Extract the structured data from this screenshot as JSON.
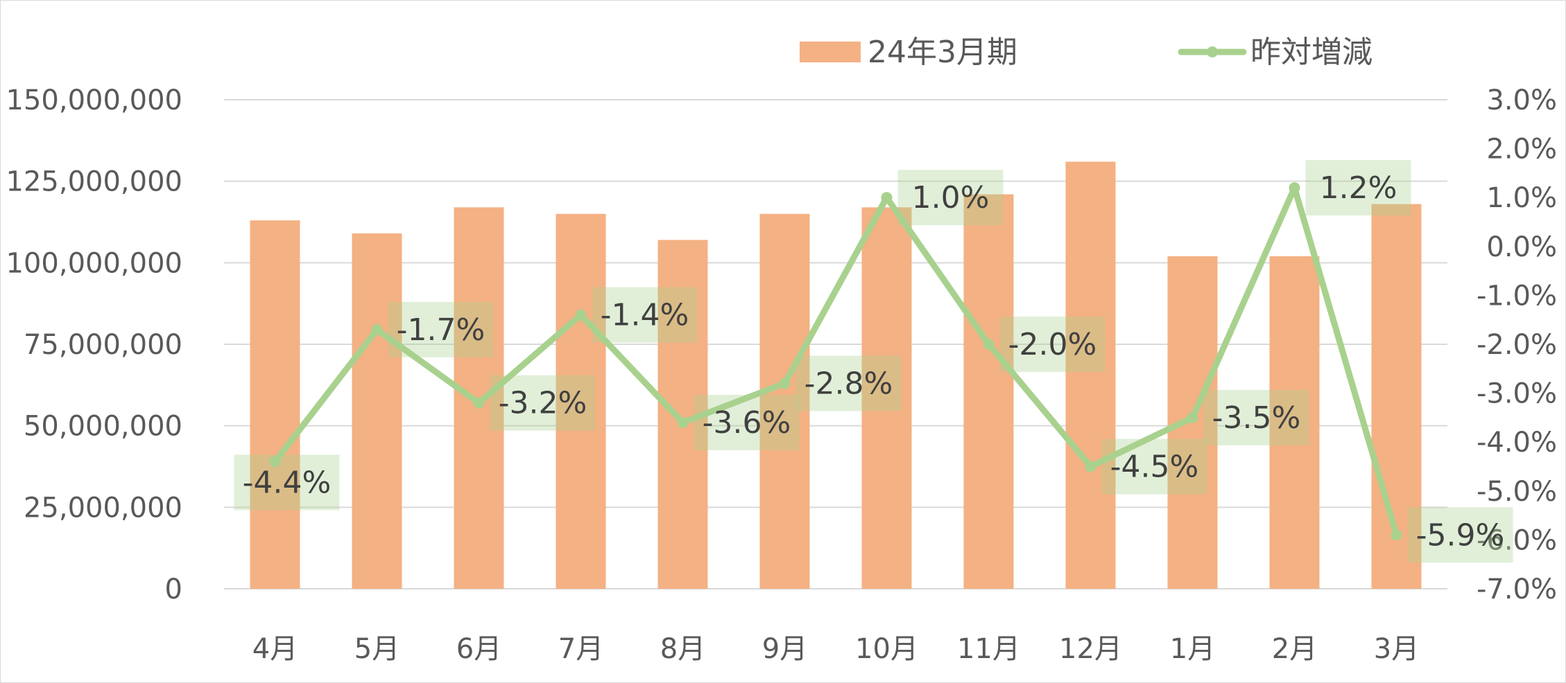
{
  "chart_data": {
    "type": "bar",
    "categories": [
      "4月",
      "5月",
      "6月",
      "7月",
      "8月",
      "9月",
      "10月",
      "11月",
      "12月",
      "1月",
      "2月",
      "3月"
    ],
    "series": [
      {
        "name": "24年3月期",
        "type": "bar",
        "axis": "left",
        "color": "#F4B183",
        "values": [
          113000000,
          109000000,
          117000000,
          115000000,
          107000000,
          115000000,
          117000000,
          121000000,
          131000000,
          102000000,
          102000000,
          118000000
        ]
      },
      {
        "name": "昨対増減",
        "type": "line",
        "axis": "right",
        "color": "#A9D18E",
        "values": [
          -4.4,
          -1.7,
          -3.2,
          -1.4,
          -3.6,
          -2.8,
          1.0,
          -2.0,
          -4.5,
          -3.5,
          1.2,
          -5.9
        ],
        "labels": [
          "-4.4%",
          "-1.7%",
          "-3.2%",
          "-1.4%",
          "-3.6%",
          "-2.8%",
          "1.0%",
          "-2.0%",
          "-4.5%",
          "-3.5%",
          "1.2%",
          "-5.9%"
        ]
      }
    ],
    "y_left": {
      "ylim": [
        0,
        150000000
      ],
      "ticks": [
        0,
        25000000,
        50000000,
        75000000,
        100000000,
        125000000,
        150000000
      ],
      "tick_labels": [
        "0",
        "25,000,000",
        "50,000,000",
        "75,000,000",
        "100,000,000",
        "125,000,000",
        "150,000,000"
      ]
    },
    "y_right": {
      "ylim": [
        -7.0,
        3.0
      ],
      "ticks": [
        -7,
        -6,
        -5,
        -4,
        -3,
        -2,
        -1,
        0,
        1,
        2,
        3
      ],
      "tick_labels": [
        "-7.0%",
        "-6.0%",
        "-5.0%",
        "-4.0%",
        "-3.0%",
        "-2.0%",
        "-1.0%",
        "0.0%",
        "1.0%",
        "2.0%",
        "3.0%"
      ]
    },
    "title": "",
    "xlabel": "",
    "grid": true,
    "legend_position": "top-right"
  }
}
